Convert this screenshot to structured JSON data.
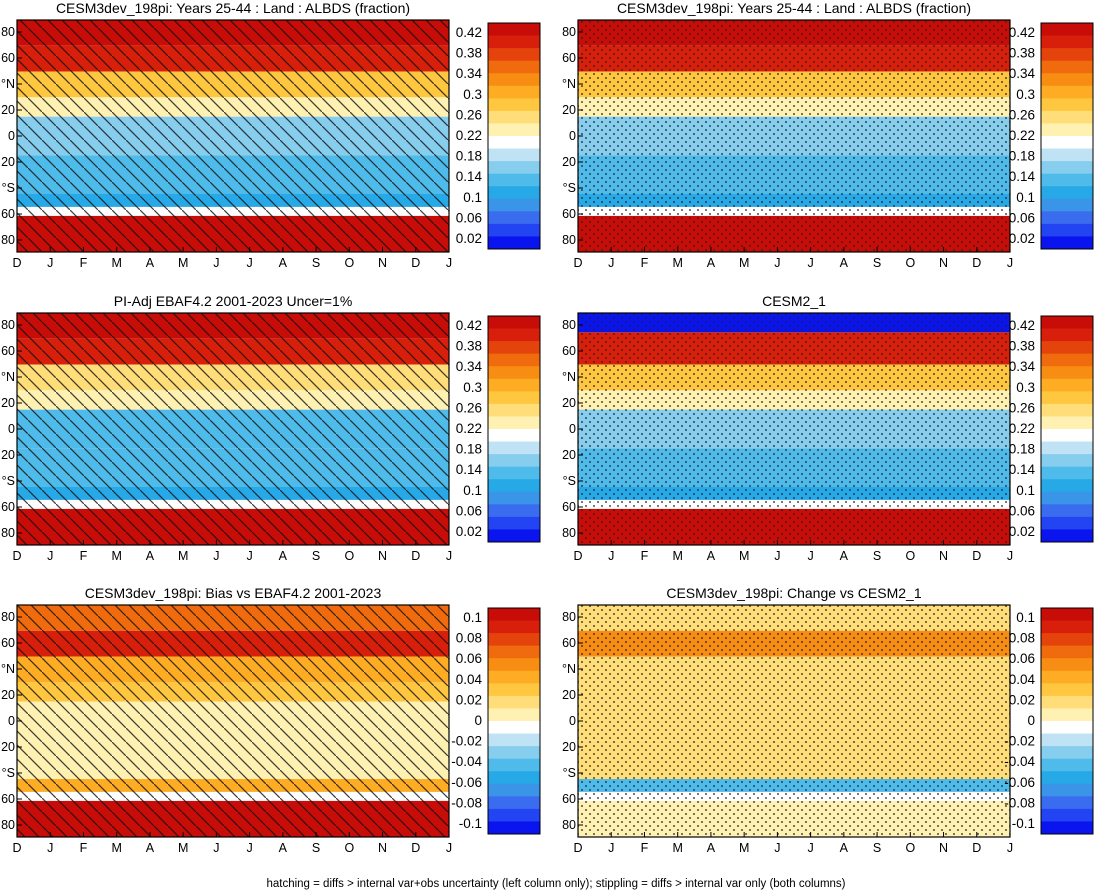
{
  "footer": "hatching = diffs > internal var+obs uncertainty (left column only); stippling = diffs > internal var only (both columns)",
  "colors": {
    "absolute_scale": [
      "#0a14ee",
      "#2244f2",
      "#3a6cf0",
      "#3a94e8",
      "#26a9e6",
      "#4fbbea",
      "#86cdee",
      "#bfe3f4",
      "#ffffff",
      "#fff1b2",
      "#ffde7a",
      "#ffc640",
      "#fdac23",
      "#f88d14",
      "#f06b0d",
      "#e4430c",
      "#d81f0b",
      "#c80d09"
    ],
    "difference_scale": [
      "#0a14ee",
      "#2244f2",
      "#3a6cf0",
      "#3a94e8",
      "#26a9e6",
      "#4fbbea",
      "#86cdee",
      "#bfe3f4",
      "#ffffff",
      "#fff1b2",
      "#ffde7a",
      "#ffc640",
      "#fdac23",
      "#f88d14",
      "#f06b0d",
      "#e4430c",
      "#d81f0b",
      "#c80d09"
    ]
  },
  "chart_data": [
    {
      "type": "heatmap",
      "panel": "top-left",
      "title": "CESM3dev_198pi: Years 25-44 : Land : ALBDS (fraction)",
      "x_ticks": [
        "D",
        "J",
        "F",
        "M",
        "A",
        "M",
        "J",
        "J",
        "A",
        "S",
        "O",
        "N",
        "D",
        "J"
      ],
      "y_ticks": [
        "80",
        "60",
        "°N",
        "20",
        "0",
        "20",
        "°S",
        "60",
        "80"
      ],
      "colorbar_ticks": [
        "0.42",
        "0.38",
        "0.34",
        "0.3",
        "0.26",
        "0.22",
        "0.18",
        "0.14",
        "0.1",
        "0.06",
        "0.02"
      ],
      "zones": [
        {
          "lat": [
            70,
            90
          ],
          "value": 0.44
        },
        {
          "lat": [
            50,
            70
          ],
          "value": 0.38
        },
        {
          "lat": [
            30,
            50
          ],
          "value": 0.28
        },
        {
          "lat": [
            15,
            30
          ],
          "value": 0.24
        },
        {
          "lat": [
            -15,
            15
          ],
          "value": 0.16
        },
        {
          "lat": [
            -45,
            -15
          ],
          "value": 0.15
        },
        {
          "lat": [
            -55,
            -45
          ],
          "value": 0.12
        },
        {
          "lat": [
            -90,
            -62
          ],
          "value": 0.44
        }
      ],
      "overlay": "hatching"
    },
    {
      "type": "heatmap",
      "panel": "top-right",
      "title": "CESM3dev_198pi: Years 25-44 : Land : ALBDS (fraction)",
      "x_ticks": [
        "D",
        "J",
        "F",
        "M",
        "A",
        "M",
        "J",
        "J",
        "A",
        "S",
        "O",
        "N",
        "D",
        "J"
      ],
      "y_ticks": [
        "80",
        "60",
        "°N",
        "20",
        "0",
        "20",
        "°S",
        "60",
        "80"
      ],
      "colorbar_ticks": [
        "0.42",
        "0.38",
        "0.34",
        "0.3",
        "0.26",
        "0.22",
        "0.18",
        "0.14",
        "0.1",
        "0.06",
        "0.02"
      ],
      "zones": [
        {
          "lat": [
            70,
            90
          ],
          "value": 0.44
        },
        {
          "lat": [
            50,
            70
          ],
          "value": 0.38
        },
        {
          "lat": [
            30,
            50
          ],
          "value": 0.28
        },
        {
          "lat": [
            15,
            30
          ],
          "value": 0.24
        },
        {
          "lat": [
            -15,
            15
          ],
          "value": 0.16
        },
        {
          "lat": [
            -45,
            -15
          ],
          "value": 0.15
        },
        {
          "lat": [
            -55,
            -45
          ],
          "value": 0.12
        },
        {
          "lat": [
            -90,
            -62
          ],
          "value": 0.44
        }
      ],
      "overlay": "stippling"
    },
    {
      "type": "heatmap",
      "panel": "middle-left",
      "title": "PI-Adj EBAF4.2 2001-2023 Uncer=1%",
      "x_ticks": [
        "D",
        "J",
        "F",
        "M",
        "A",
        "M",
        "J",
        "J",
        "A",
        "S",
        "O",
        "N",
        "D",
        "J"
      ],
      "y_ticks": [
        "80",
        "60",
        "°N",
        "20",
        "0",
        "20",
        "°S",
        "60",
        "80"
      ],
      "colorbar_ticks": [
        "0.42",
        "0.38",
        "0.34",
        "0.3",
        "0.26",
        "0.22",
        "0.18",
        "0.14",
        "0.1",
        "0.06",
        "0.02"
      ],
      "zones": [
        {
          "lat": [
            70,
            90
          ],
          "value": 0.44
        },
        {
          "lat": [
            50,
            70
          ],
          "value": 0.38
        },
        {
          "lat": [
            30,
            50
          ],
          "value": 0.26
        },
        {
          "lat": [
            15,
            30
          ],
          "value": 0.22
        },
        {
          "lat": [
            -15,
            15
          ],
          "value": 0.15
        },
        {
          "lat": [
            -45,
            -15
          ],
          "value": 0.14
        },
        {
          "lat": [
            -55,
            -45
          ],
          "value": 0.12
        },
        {
          "lat": [
            -90,
            -62
          ],
          "value": 0.44
        }
      ],
      "overlay": "hatching"
    },
    {
      "type": "heatmap",
      "panel": "middle-right",
      "title": "CESM2_1",
      "x_ticks": [
        "D",
        "J",
        "F",
        "M",
        "A",
        "M",
        "J",
        "J",
        "A",
        "S",
        "O",
        "N",
        "D",
        "J"
      ],
      "y_ticks": [
        "80",
        "60",
        "°N",
        "20",
        "0",
        "20",
        "°S",
        "60",
        "80"
      ],
      "colorbar_ticks": [
        "0.42",
        "0.38",
        "0.34",
        "0.3",
        "0.26",
        "0.22",
        "0.18",
        "0.14",
        "0.1",
        "0.06",
        "0.02"
      ],
      "zones": [
        {
          "lat": [
            75,
            90
          ],
          "value": 0.02
        },
        {
          "lat": [
            50,
            75
          ],
          "value": 0.38
        },
        {
          "lat": [
            30,
            50
          ],
          "value": 0.28
        },
        {
          "lat": [
            15,
            30
          ],
          "value": 0.24
        },
        {
          "lat": [
            -15,
            15
          ],
          "value": 0.16
        },
        {
          "lat": [
            -45,
            -15
          ],
          "value": 0.15
        },
        {
          "lat": [
            -55,
            -45
          ],
          "value": 0.12
        },
        {
          "lat": [
            -90,
            -62
          ],
          "value": 0.44
        }
      ],
      "overlay": "stippling"
    },
    {
      "type": "heatmap",
      "panel": "bottom-left",
      "title": "CESM3dev_198pi: Bias vs EBAF4.2 2001-2023",
      "x_ticks": [
        "D",
        "J",
        "F",
        "M",
        "A",
        "M",
        "J",
        "J",
        "A",
        "S",
        "O",
        "N",
        "D",
        "J"
      ],
      "y_ticks": [
        "80",
        "60",
        "°N",
        "20",
        "0",
        "20",
        "°S",
        "60",
        "80"
      ],
      "colorbar_ticks": [
        "0.1",
        "0.08",
        "0.06",
        "0.04",
        "0.02",
        "0",
        "-0.02",
        "-0.04",
        "-0.06",
        "-0.08",
        "-0.1"
      ],
      "zones": [
        {
          "lat": [
            70,
            90
          ],
          "value": 0.06
        },
        {
          "lat": [
            50,
            70
          ],
          "value": 0.08
        },
        {
          "lat": [
            30,
            50
          ],
          "value": 0.04
        },
        {
          "lat": [
            15,
            30
          ],
          "value": 0.03
        },
        {
          "lat": [
            -15,
            15
          ],
          "value": 0.01
        },
        {
          "lat": [
            -45,
            -15
          ],
          "value": 0.0
        },
        {
          "lat": [
            -55,
            -45
          ],
          "value": 0.04
        },
        {
          "lat": [
            -90,
            -62
          ],
          "value": 0.1
        }
      ],
      "overlay": "hatching"
    },
    {
      "type": "heatmap",
      "panel": "bottom-right",
      "title": "CESM3dev_198pi: Change vs CESM2_1",
      "x_ticks": [
        "D",
        "J",
        "F",
        "M",
        "A",
        "M",
        "J",
        "J",
        "A",
        "S",
        "O",
        "N",
        "D",
        "J"
      ],
      "y_ticks": [
        "80",
        "60",
        "°N",
        "20",
        "0",
        "20",
        "°S",
        "60",
        "80"
      ],
      "colorbar_ticks": [
        "0.1",
        "0.08",
        "0.06",
        "0.04",
        "0.02",
        "0",
        "-0.02",
        "-0.04",
        "-0.06",
        "-0.08",
        "-0.1"
      ],
      "zones": [
        {
          "lat": [
            70,
            90
          ],
          "value": 0.02
        },
        {
          "lat": [
            50,
            70
          ],
          "value": 0.05
        },
        {
          "lat": [
            30,
            50
          ],
          "value": 0.02
        },
        {
          "lat": [
            15,
            30
          ],
          "value": 0.02
        },
        {
          "lat": [
            -15,
            15
          ],
          "value": 0.015
        },
        {
          "lat": [
            -45,
            -15
          ],
          "value": 0.015
        },
        {
          "lat": [
            -55,
            -45
          ],
          "value": -0.04
        },
        {
          "lat": [
            -90,
            -62
          ],
          "value": 0.0
        }
      ],
      "overlay": "stippling"
    }
  ]
}
